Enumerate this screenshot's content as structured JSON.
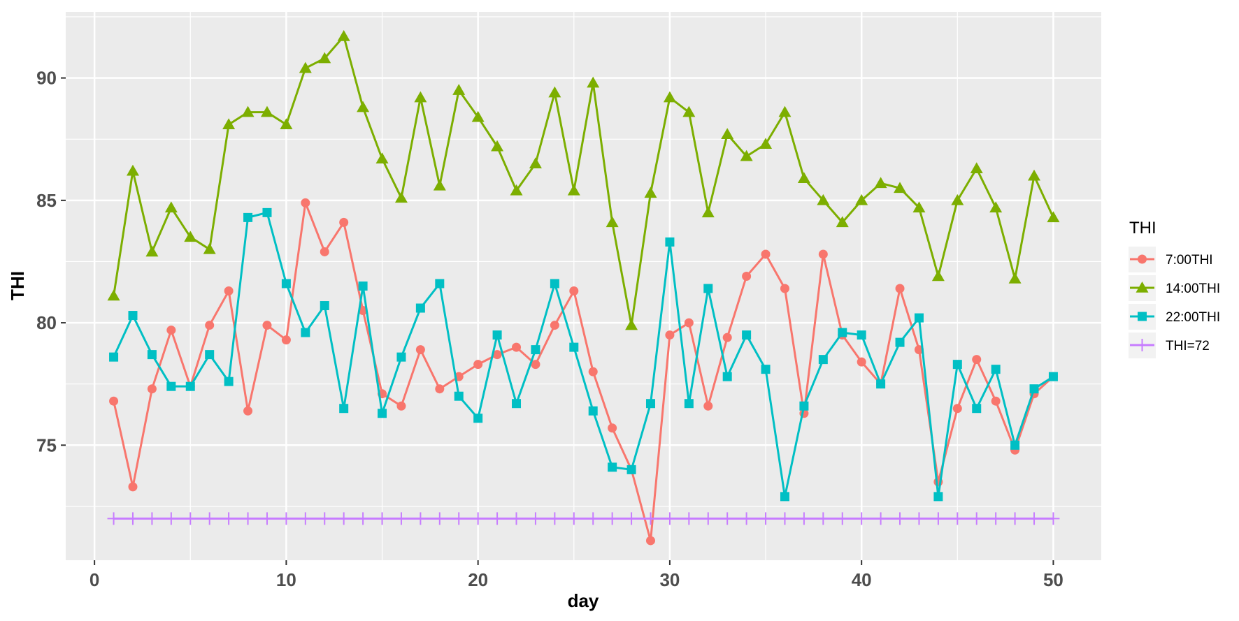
{
  "chart_data": {
    "type": "line",
    "xlabel": "day",
    "ylabel": "THI",
    "xlim": [
      -1.5,
      52.5
    ],
    "ylim": [
      70.3,
      92.7
    ],
    "x_ticks": [
      0,
      10,
      20,
      30,
      40,
      50
    ],
    "y_ticks": [
      75,
      80,
      85,
      90
    ],
    "grid": true,
    "legend": {
      "title": "THI",
      "position": "right"
    },
    "x": [
      1,
      2,
      3,
      4,
      5,
      6,
      7,
      8,
      9,
      10,
      11,
      12,
      13,
      14,
      15,
      16,
      17,
      18,
      19,
      20,
      21,
      22,
      23,
      24,
      25,
      26,
      27,
      28,
      29,
      30,
      31,
      32,
      33,
      34,
      35,
      36,
      37,
      38,
      39,
      40,
      41,
      42,
      43,
      44,
      45,
      46,
      47,
      48,
      49,
      50
    ],
    "series": [
      {
        "name": "7:00THI",
        "color": "#F8766D",
        "marker": "circle",
        "values": [
          76.8,
          73.3,
          77.3,
          79.7,
          77.4,
          79.9,
          81.3,
          76.4,
          79.9,
          79.3,
          84.9,
          82.9,
          84.1,
          80.5,
          77.1,
          76.6,
          78.9,
          77.3,
          77.8,
          78.3,
          78.7,
          79.0,
          78.3,
          79.9,
          81.3,
          78.0,
          75.7,
          74.0,
          71.1,
          79.5,
          80.0,
          76.6,
          79.4,
          81.9,
          82.8,
          81.4,
          76.3,
          82.8,
          79.5,
          78.4,
          77.5,
          81.4,
          78.9,
          73.5,
          76.5,
          78.5,
          76.8,
          74.8,
          77.1,
          77.8
        ]
      },
      {
        "name": "14:00THI",
        "color": "#7CAE00",
        "marker": "triangle",
        "values": [
          81.1,
          86.2,
          82.9,
          84.7,
          83.5,
          83.0,
          88.1,
          88.6,
          88.6,
          88.1,
          90.4,
          90.8,
          91.7,
          88.8,
          86.7,
          85.1,
          89.2,
          85.6,
          89.5,
          88.4,
          87.2,
          85.4,
          86.5,
          89.4,
          85.4,
          89.8,
          84.1,
          79.9,
          85.3,
          89.2,
          88.6,
          84.5,
          87.7,
          86.8,
          87.3,
          88.6,
          85.9,
          85.0,
          84.1,
          85.0,
          85.7,
          85.5,
          84.7,
          81.9,
          85.0,
          86.3,
          84.7,
          81.8,
          86.0,
          84.3
        ]
      },
      {
        "name": "22:00THI",
        "color": "#00BFC4",
        "marker": "square",
        "values": [
          78.6,
          80.3,
          78.7,
          77.4,
          77.4,
          78.7,
          77.6,
          84.3,
          84.5,
          81.6,
          79.6,
          80.7,
          76.5,
          81.5,
          76.3,
          78.6,
          80.6,
          81.6,
          77.0,
          76.1,
          79.5,
          76.7,
          78.9,
          81.6,
          79.0,
          76.4,
          74.1,
          74.0,
          76.7,
          83.3,
          76.7,
          81.4,
          77.8,
          79.5,
          78.1,
          72.9,
          76.6,
          78.5,
          79.6,
          79.5,
          77.5,
          79.2,
          80.2,
          72.9,
          78.3,
          76.5,
          78.1,
          75.0,
          77.3,
          77.8
        ]
      },
      {
        "name": "THI=72",
        "color": "#C77CFF",
        "marker": "plus",
        "values": [
          72,
          72,
          72,
          72,
          72,
          72,
          72,
          72,
          72,
          72,
          72,
          72,
          72,
          72,
          72,
          72,
          72,
          72,
          72,
          72,
          72,
          72,
          72,
          72,
          72,
          72,
          72,
          72,
          72,
          72,
          72,
          72,
          72,
          72,
          72,
          72,
          72,
          72,
          72,
          72,
          72,
          72,
          72,
          72,
          72,
          72,
          72,
          72,
          72,
          72
        ]
      }
    ]
  }
}
